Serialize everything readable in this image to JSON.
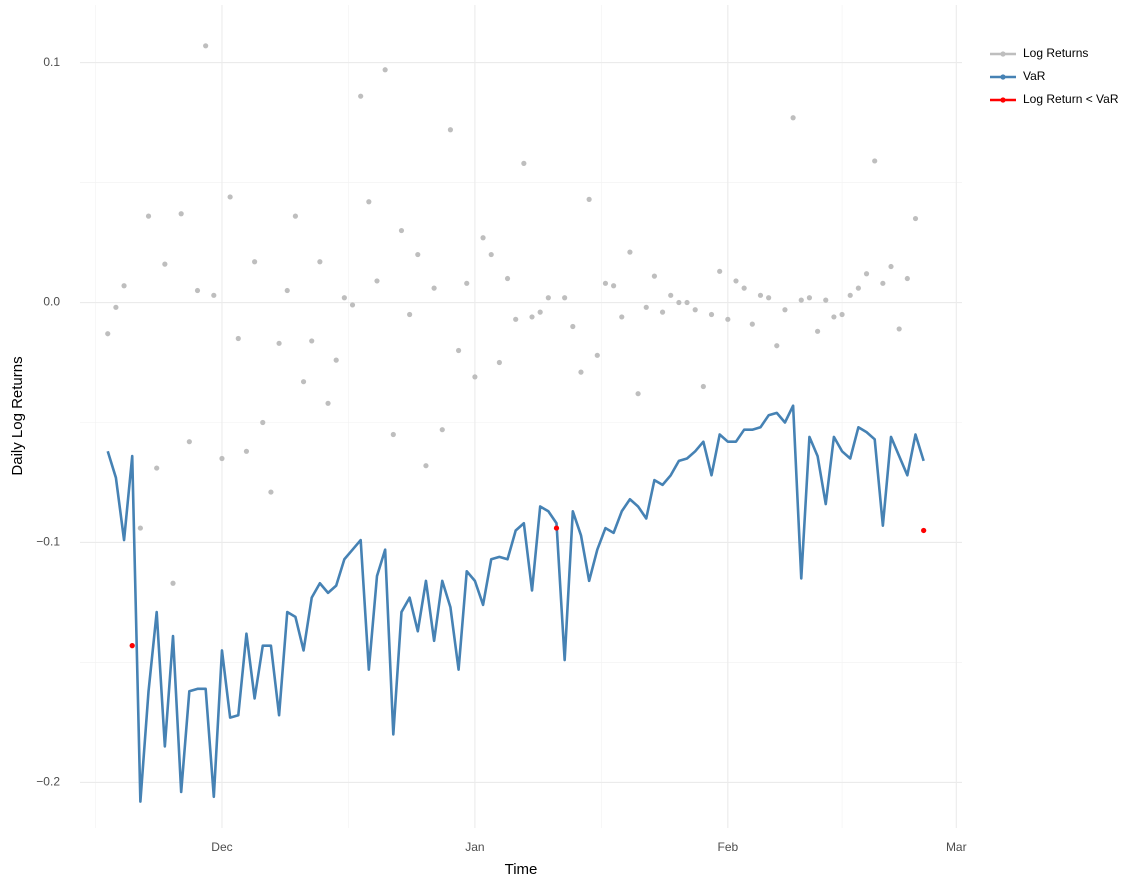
{
  "chart_data": {
    "type": "line",
    "xlabel": "Time",
    "ylabel": "Daily Log Returns",
    "x": [
      -14,
      -13,
      -12,
      -11,
      -10,
      -9,
      -8,
      -7,
      -6,
      -5,
      -4,
      -3,
      -2,
      -1,
      0,
      1,
      2,
      3,
      4,
      5,
      6,
      7,
      8,
      9,
      10,
      11,
      12,
      13,
      14,
      15,
      16,
      17,
      18,
      19,
      20,
      21,
      22,
      23,
      24,
      25,
      26,
      27,
      28,
      29,
      30,
      31,
      32,
      33,
      34,
      35,
      36,
      37,
      38,
      39,
      40,
      41,
      42,
      43,
      44,
      45,
      46,
      47,
      48,
      49,
      50,
      51,
      52,
      53,
      54,
      55,
      56,
      57,
      58,
      59,
      60,
      61,
      62,
      63,
      64,
      65,
      66,
      67,
      68,
      69,
      70,
      71,
      72,
      73,
      74,
      75,
      76,
      77,
      78,
      79,
      80,
      81,
      82,
      83,
      84,
      85,
      86
    ],
    "series": [
      {
        "name": "Log Returns",
        "color": "#bebebe",
        "style": "points",
        "values": [
          -0.013,
          -0.002,
          0.007,
          -0.143,
          -0.094,
          0.036,
          -0.069,
          0.016,
          -0.117,
          0.037,
          -0.058,
          0.005,
          0.107,
          0.003,
          -0.065,
          0.044,
          -0.015,
          -0.062,
          0.017,
          -0.05,
          -0.079,
          -0.017,
          0.005,
          0.036,
          -0.033,
          -0.016,
          0.017,
          -0.042,
          -0.024,
          0.002,
          -0.001,
          0.086,
          0.042,
          0.009,
          0.097,
          -0.055,
          0.03,
          -0.005,
          0.02,
          -0.068,
          0.006,
          -0.053,
          0.072,
          -0.02,
          0.008,
          -0.031,
          0.027,
          0.02,
          -0.025,
          0.01,
          -0.007,
          0.058,
          -0.006,
          -0.004,
          0.002,
          -0.094,
          0.002,
          -0.01,
          -0.029,
          0.043,
          -0.022,
          0.008,
          0.007,
          -0.006,
          0.021,
          -0.038,
          -0.002,
          0.011,
          -0.004,
          0.003,
          0.0,
          0.0,
          -0.003,
          -0.035,
          -0.005,
          0.013,
          -0.007,
          0.009,
          0.006,
          -0.009,
          0.003,
          0.002,
          -0.018,
          -0.003,
          0.077,
          0.001,
          0.002,
          -0.012,
          0.001,
          -0.006,
          -0.005,
          0.003,
          0.006,
          0.012,
          0.059,
          0.008,
          0.015,
          -0.011,
          0.01,
          0.035,
          -0.095
        ]
      },
      {
        "name": "VaR",
        "color": "#4682b4",
        "style": "line",
        "values": [
          -0.062,
          -0.073,
          -0.099,
          -0.064,
          -0.208,
          -0.162,
          -0.129,
          -0.185,
          -0.139,
          -0.204,
          -0.162,
          -0.161,
          -0.161,
          -0.206,
          -0.145,
          -0.173,
          -0.172,
          -0.138,
          -0.165,
          -0.143,
          -0.143,
          -0.172,
          -0.129,
          -0.131,
          -0.145,
          -0.123,
          -0.117,
          -0.121,
          -0.118,
          -0.107,
          -0.103,
          -0.099,
          -0.153,
          -0.114,
          -0.103,
          -0.18,
          -0.129,
          -0.123,
          -0.137,
          -0.116,
          -0.141,
          -0.116,
          -0.127,
          -0.153,
          -0.112,
          -0.116,
          -0.126,
          -0.107,
          -0.106,
          -0.107,
          -0.095,
          -0.092,
          -0.12,
          -0.085,
          -0.087,
          -0.092,
          -0.149,
          -0.087,
          -0.097,
          -0.116,
          -0.103,
          -0.094,
          -0.096,
          -0.087,
          -0.082,
          -0.085,
          -0.09,
          -0.074,
          -0.076,
          -0.072,
          -0.066,
          -0.065,
          -0.062,
          -0.058,
          -0.072,
          -0.055,
          -0.058,
          -0.058,
          -0.053,
          -0.053,
          -0.052,
          -0.047,
          -0.046,
          -0.05,
          -0.043,
          -0.115,
          -0.056,
          -0.064,
          -0.084,
          -0.056,
          -0.062,
          -0.065,
          -0.052,
          -0.054,
          -0.057,
          -0.093,
          -0.056,
          -0.064,
          -0.072,
          -0.055,
          -0.066
        ]
      },
      {
        "name": "Log Return < VaR",
        "color": "#ff0000",
        "style": "points",
        "values": [
          null,
          null,
          null,
          -0.143,
          null,
          null,
          null,
          null,
          null,
          null,
          null,
          null,
          null,
          null,
          null,
          null,
          null,
          null,
          null,
          null,
          null,
          null,
          null,
          null,
          null,
          null,
          null,
          null,
          null,
          null,
          null,
          null,
          null,
          null,
          null,
          null,
          null,
          null,
          null,
          null,
          null,
          null,
          null,
          null,
          null,
          null,
          null,
          null,
          null,
          null,
          null,
          null,
          null,
          null,
          null,
          -0.094,
          null,
          null,
          null,
          null,
          null,
          null,
          null,
          null,
          null,
          null,
          null,
          null,
          null,
          null,
          null,
          null,
          null,
          null,
          null,
          null,
          null,
          null,
          null,
          null,
          null,
          null,
          null,
          null,
          null,
          null,
          null,
          null,
          null,
          null,
          null,
          null,
          null,
          null,
          null,
          null,
          null,
          null,
          null,
          null,
          -0.095
        ]
      }
    ],
    "xlim": [
      -17.4,
      90.7
    ],
    "xticks": [
      {
        "value": 0,
        "label": "Dec"
      },
      {
        "value": 31,
        "label": "Jan"
      },
      {
        "value": 62,
        "label": "Feb"
      },
      {
        "value": 90,
        "label": "Mar"
      }
    ],
    "ylim": [
      -0.219,
      0.124
    ],
    "yticks": [
      {
        "value": -0.2,
        "label": "−0.2"
      },
      {
        "value": -0.1,
        "label": "−0.1"
      },
      {
        "value": 0,
        "label": "0.0"
      },
      0.1
    ],
    "grid": true,
    "legend": "top-right"
  }
}
